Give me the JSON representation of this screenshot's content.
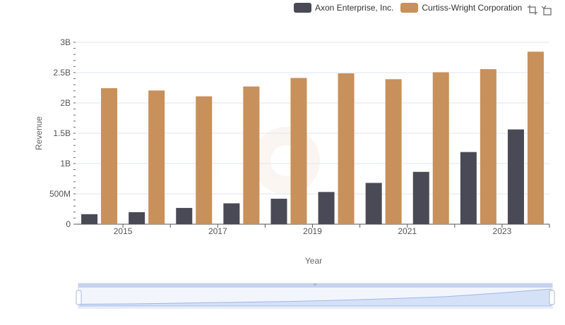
{
  "toolbox": {
    "zoom_icon": "zoom-select-icon",
    "restore_icon": "restore-icon"
  },
  "colors": {
    "axon": "#4a4a56",
    "curtiss": "#c8905a",
    "grid": "#e0e6f1",
    "slider_fill": "#dbe4f7",
    "slider_border": "#c6d2ee"
  },
  "chart_data": {
    "type": "bar",
    "xlabel": "Year",
    "ylabel": "Revenue",
    "ylim": [
      0,
      3000000000
    ],
    "y_ticks": [
      {
        "value": 0,
        "label": "0"
      },
      {
        "value": 500000000,
        "label": "500M"
      },
      {
        "value": 1000000000,
        "label": "1B"
      },
      {
        "value": 1500000000,
        "label": "1.5B"
      },
      {
        "value": 2000000000,
        "label": "2B"
      },
      {
        "value": 2500000000,
        "label": "2.5B"
      },
      {
        "value": 3000000000,
        "label": "3B"
      }
    ],
    "categories": [
      "2014",
      "2015",
      "2016",
      "2017",
      "2018",
      "2019",
      "2020",
      "2021",
      "2022",
      "2023"
    ],
    "x_tick_labels": [
      "2015",
      "2017",
      "2019",
      "2021",
      "2023"
    ],
    "series": [
      {
        "name": "Axon Enterprise, Inc.",
        "values": [
          165000000,
          198000000,
          268000000,
          344000000,
          420000000,
          531000000,
          681000000,
          863000000,
          1190000000,
          1563000000
        ]
      },
      {
        "name": "Curtiss-Wright Corporation",
        "values": [
          2243000000,
          2205000000,
          2109000000,
          2271000000,
          2412000000,
          2488000000,
          2391000000,
          2506000000,
          2557000000,
          2845000000
        ]
      }
    ],
    "legend_position": "top-right",
    "grid": true
  }
}
